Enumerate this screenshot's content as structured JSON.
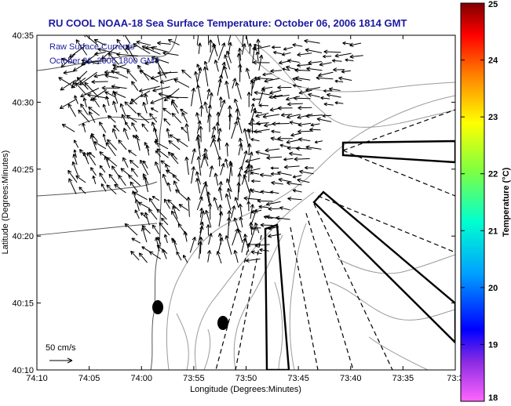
{
  "title": "RU COOL  NOAA-18  Sea Surface Temperature:  October 06, 2006 1814 GMT",
  "overlay": {
    "line1": "Raw Surface Currents",
    "line2": "October 06, 2006 1800 GMT"
  },
  "axes": {
    "xlabel": "Longitude (Degrees:Minutes)",
    "ylabel": "Latitude (Degrees:Minutes)",
    "xticks": [
      "74:10",
      "74:05",
      "74:00",
      "73:55",
      "73:50",
      "73:45",
      "73:40",
      "73:35",
      "73:3"
    ],
    "yticks": [
      "40:35",
      "40:30",
      "40:25",
      "40:20",
      "40:15",
      "40:10"
    ]
  },
  "scale": {
    "label": "50 cm/s"
  },
  "colorbar": {
    "label": "Temperature (°C)",
    "ticks": [
      "25",
      "24",
      "23",
      "22",
      "21",
      "20",
      "19",
      "18"
    ],
    "min": 18,
    "max": 25
  },
  "colors": {
    "title": "#1a1aa0",
    "vectors": "#000000",
    "contours": "#9a9a9a"
  }
}
